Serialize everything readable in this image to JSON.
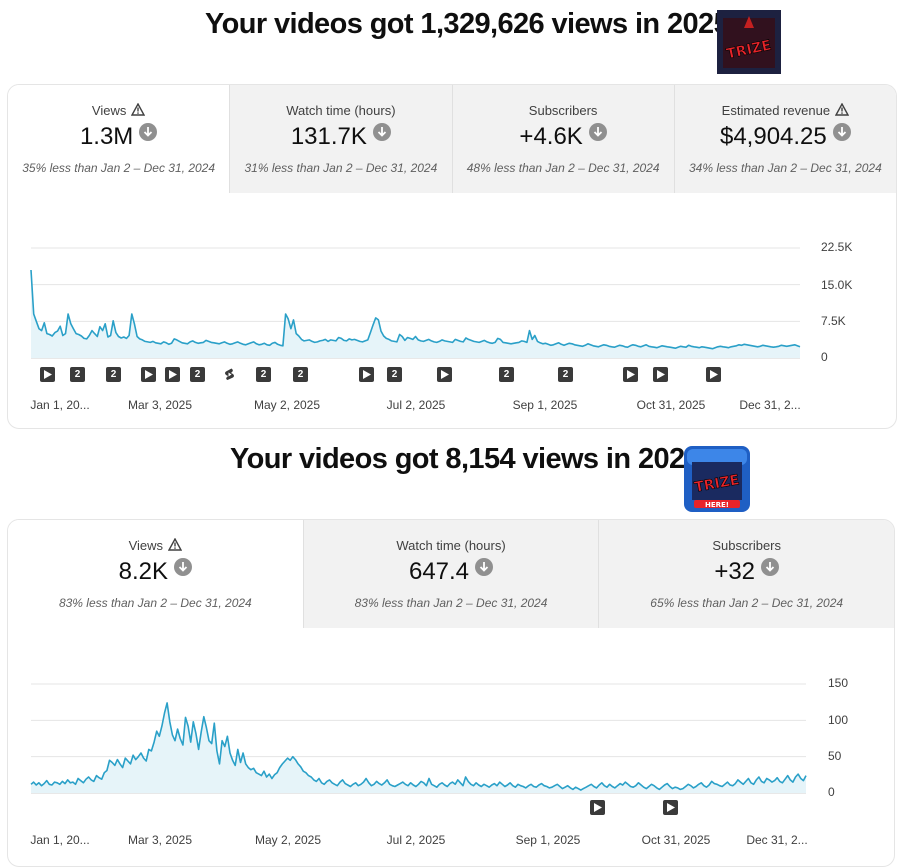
{
  "report1": {
    "headline": "Your videos got 1,329,626 views in 2025",
    "logo_text": "TRIZE",
    "metrics": [
      {
        "label": "Views",
        "value": "1.3M",
        "sub": "35% less than Jan 2 – Dec 31, 2024",
        "warning": true
      },
      {
        "label": "Watch time (hours)",
        "value": "131.7K",
        "sub": "31% less than Jan 2 – Dec 31, 2024",
        "warning": false
      },
      {
        "label": "Subscribers",
        "value": "+4.6K",
        "sub": "48% less than Jan 2 – Dec 31, 2024",
        "warning": false
      },
      {
        "label": "Estimated revenue",
        "value": "$4,904.25",
        "sub": "34% less than Jan 2 – Dec 31, 2024",
        "warning": true
      }
    ],
    "markers": [
      "play",
      "2",
      "2",
      "play",
      "play",
      "2",
      "short",
      "2",
      "2",
      "play",
      "2",
      "play",
      "2",
      "2",
      "play",
      "play",
      "play"
    ]
  },
  "report2": {
    "headline": "Your videos got 8,154 views in 2025",
    "logo_text": "TRIZE",
    "logo_subtext": "HERE!",
    "metrics": [
      {
        "label": "Views",
        "value": "8.2K",
        "sub": "83% less than Jan 2 – Dec 31, 2024",
        "warning": true
      },
      {
        "label": "Watch time (hours)",
        "value": "647.4",
        "sub": "83% less than Jan 2 – Dec 31, 2024",
        "warning": false
      },
      {
        "label": "Subscribers",
        "value": "+32",
        "sub": "65% less than Jan 2 – Dec 31, 2024",
        "warning": false
      }
    ],
    "markers": [
      "play",
      "play"
    ]
  },
  "colors": {
    "line": "#2aa0c8",
    "fill": "#e6f4f9",
    "grid": "#e5e5e5",
    "marker": "#3a3a3a"
  },
  "chart_data": [
    {
      "type": "area",
      "title": "",
      "xlabel": "",
      "ylabel": "",
      "x_ticks": [
        "Jan 1, 20...",
        "Mar 3, 2025",
        "May 2, 2025",
        "Jul 2, 2025",
        "Sep 1, 2025",
        "Oct 31, 2025",
        "Dec 31, 2..."
      ],
      "y_ticks": [
        "22.5K",
        "15.0K",
        "7.5K",
        "0"
      ],
      "ylim": [
        0,
        22500
      ],
      "grid": true,
      "series": [
        {
          "values": [
            18000,
            9000,
            7500,
            6000,
            5600,
            7200,
            5000,
            4800,
            4500,
            5200,
            5500,
            6500,
            4600,
            5000,
            9000,
            7000,
            6000,
            5000,
            4800,
            4500,
            4000,
            3900,
            4600,
            5600,
            5000,
            4400,
            6400,
            5600,
            7000,
            4300,
            4600,
            7600,
            5200,
            4400,
            4100,
            4300,
            4000,
            4600,
            9000,
            7000,
            4400,
            3900,
            3700,
            3400,
            3300,
            3200,
            3400,
            3100,
            3000,
            2900,
            3300,
            3100,
            2800,
            3000,
            3900,
            3700,
            3400,
            3100,
            3000,
            2900,
            3300,
            3500,
            3200,
            3000,
            3100,
            3200,
            3600,
            3400,
            3200,
            3100,
            3000,
            2900,
            3100,
            3300,
            3000,
            2800,
            2900,
            3100,
            3300,
            3000,
            2800,
            2700,
            2900,
            3100,
            3300,
            2900,
            2700,
            2800,
            3000,
            2700,
            2600,
            3000,
            3200,
            2800,
            2600,
            2500,
            9000,
            8000,
            6000,
            7800,
            5000,
            4500,
            3800,
            3500,
            3600,
            3700,
            3400,
            3200,
            3300,
            3500,
            3600,
            3800,
            3400,
            3700,
            3600,
            3500,
            4200,
            4000,
            3600,
            3500,
            3900,
            3700,
            3800,
            3600,
            3400,
            3300,
            3500,
            3700,
            5200,
            6800,
            8200,
            7800,
            5500,
            4500,
            4000,
            3800,
            3500,
            3400,
            3300,
            4800,
            4400,
            3600,
            4200,
            4000,
            3800,
            4400,
            3700,
            3500,
            3400,
            3600,
            3800,
            3500,
            3300,
            3200,
            3400,
            3700,
            3500,
            3400,
            3300,
            3200,
            3800,
            3600,
            3400,
            3300,
            4100,
            3800,
            3600,
            3400,
            3300,
            3200,
            3400,
            3600,
            3300,
            3100,
            3000,
            3200,
            4000,
            3800,
            3200,
            3100,
            3000,
            2900,
            3000,
            3100,
            3200,
            3500,
            3400,
            3200,
            5600,
            3800,
            4600,
            3400,
            3100,
            2900,
            3000,
            2800,
            2600,
            2700,
            2900,
            3100,
            2800,
            2600,
            2800,
            3000,
            2900,
            2700,
            2600,
            2500,
            2400,
            2600,
            2900,
            2700,
            2500,
            2400,
            2300,
            2500,
            2700,
            2600,
            2400,
            2300,
            2200,
            2400,
            2600,
            2500,
            2300,
            2200,
            2500,
            2700,
            2600,
            2400,
            2300,
            2500,
            2700,
            2400,
            2300,
            2200,
            2100,
            2300,
            2500,
            2400,
            2300,
            2200,
            2100,
            2000,
            2200,
            2400,
            2300,
            2200,
            2600,
            2400,
            2300,
            2200,
            2100,
            2300,
            2200,
            2100,
            2000,
            1900,
            2100,
            2300,
            2400,
            2300,
            2200,
            2100,
            2300,
            2400,
            2500,
            2700,
            2600,
            2800,
            2700,
            2600,
            2500,
            2400,
            2300,
            2400,
            2600,
            2500,
            2400,
            2300,
            2200,
            2300,
            2400,
            2600,
            2500,
            2400,
            2500,
            2600,
            2700,
            2500,
            2300
          ]
        }
      ]
    },
    {
      "type": "area",
      "title": "",
      "xlabel": "",
      "ylabel": "",
      "x_ticks": [
        "Jan 1, 20...",
        "Mar 3, 2025",
        "May 2, 2025",
        "Jul 2, 2025",
        "Sep 1, 2025",
        "Oct 31, 2025",
        "Dec 31, 2..."
      ],
      "y_ticks": [
        "150",
        "100",
        "50",
        "0"
      ],
      "ylim": [
        0,
        150
      ],
      "grid": true,
      "series": [
        {
          "values": [
            12,
            15,
            11,
            14,
            10,
            13,
            17,
            12,
            11,
            15,
            14,
            12,
            16,
            13,
            18,
            14,
            15,
            12,
            20,
            17,
            14,
            19,
            22,
            18,
            16,
            24,
            21,
            19,
            28,
            31,
            45,
            42,
            38,
            46,
            40,
            35,
            48,
            44,
            40,
            52,
            46,
            50,
            55,
            48,
            44,
            60,
            58,
            70,
            85,
            78,
            92,
            110,
            124,
            98,
            80,
            72,
            88,
            75,
            66,
            104,
            92,
            70,
            98,
            82,
            60,
            84,
            105,
            90,
            72,
            68,
            96,
            58,
            40,
            72,
            64,
            78,
            55,
            45,
            38,
            60,
            42,
            55,
            40,
            35,
            32,
            34,
            28,
            26,
            24,
            30,
            22,
            26,
            20,
            25,
            28,
            35,
            40,
            44,
            48,
            45,
            50,
            46,
            40,
            36,
            30,
            28,
            24,
            22,
            18,
            16,
            20,
            14,
            12,
            16,
            18,
            14,
            12,
            10,
            15,
            18,
            13,
            11,
            9,
            12,
            14,
            10,
            12,
            15,
            20,
            14,
            10,
            12,
            16,
            13,
            11,
            14,
            18,
            12,
            10,
            9,
            11,
            13,
            15,
            12,
            10,
            14,
            11,
            9,
            12,
            16,
            14,
            10,
            20,
            12,
            10,
            8,
            12,
            14,
            11,
            9,
            13,
            15,
            12,
            18,
            14,
            10,
            22,
            16,
            12,
            10,
            14,
            11,
            9,
            12,
            10,
            8,
            11,
            13,
            10,
            15,
            12,
            9,
            11,
            14,
            10,
            8,
            12,
            10,
            9,
            7,
            10,
            12,
            9,
            8,
            11,
            13,
            10,
            9,
            7,
            8,
            10,
            12,
            9,
            6,
            8,
            10,
            7,
            5,
            8,
            6,
            4,
            6,
            8,
            10,
            12,
            9,
            7,
            11,
            14,
            10,
            8,
            12,
            9,
            7,
            10,
            13,
            11,
            15,
            12,
            9,
            8,
            10,
            14,
            11,
            8,
            6,
            9,
            12,
            10,
            7,
            5,
            8,
            11,
            13,
            9,
            6,
            8,
            7,
            5,
            6,
            9,
            12,
            10,
            7,
            9,
            12,
            14,
            10,
            8,
            11,
            16,
            13,
            12,
            10,
            9,
            12,
            15,
            11,
            10,
            13,
            18,
            15,
            12,
            16,
            20,
            14,
            12,
            18,
            22,
            16,
            14,
            20,
            18,
            15,
            17,
            21,
            16,
            14,
            19,
            24,
            18,
            15,
            22,
            26,
            20,
            17,
            24
          ]
        }
      ]
    }
  ]
}
